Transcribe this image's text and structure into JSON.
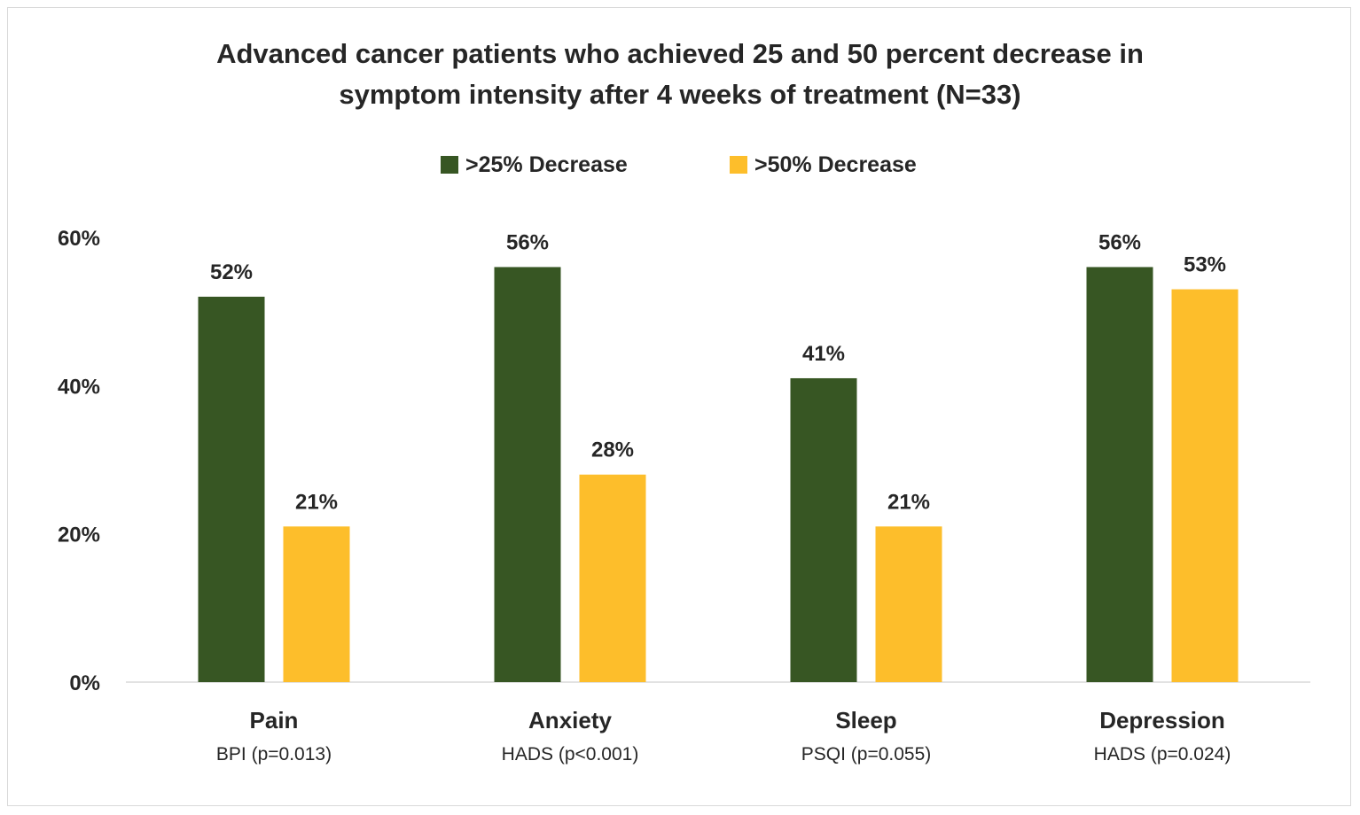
{
  "chart_data": {
    "type": "bar",
    "title_lines": [
      "Advanced cancer patients who achieved 25 and 50 percent decrease in",
      "symptom intensity after 4 weeks of treatment  (N=33)"
    ],
    "categories": [
      "Pain",
      "Anxiety",
      "Sleep",
      "Depression"
    ],
    "subcategories": [
      "BPI (p=0.013)",
      "HADS (p<0.001)",
      "PSQI  (p=0.055)",
      "HADS (p=0.024)"
    ],
    "series": [
      {
        "name": ">25% Decrease",
        "color": "#375623",
        "values": [
          52,
          56,
          41,
          56
        ],
        "labels": [
          "52%",
          "56%",
          "41%",
          "56%"
        ]
      },
      {
        "name": ">50% Decrease",
        "color": "#fdbe2b",
        "values": [
          21,
          28,
          21,
          53
        ],
        "labels": [
          "21%",
          "28%",
          "21%",
          "53%"
        ]
      }
    ],
    "y_ticks": [
      0,
      20,
      40,
      60
    ],
    "y_tick_labels": [
      "0%",
      "20%",
      "40%",
      "60%"
    ],
    "ylim": [
      0,
      60
    ],
    "grid": false,
    "legend_position": "top-center"
  }
}
